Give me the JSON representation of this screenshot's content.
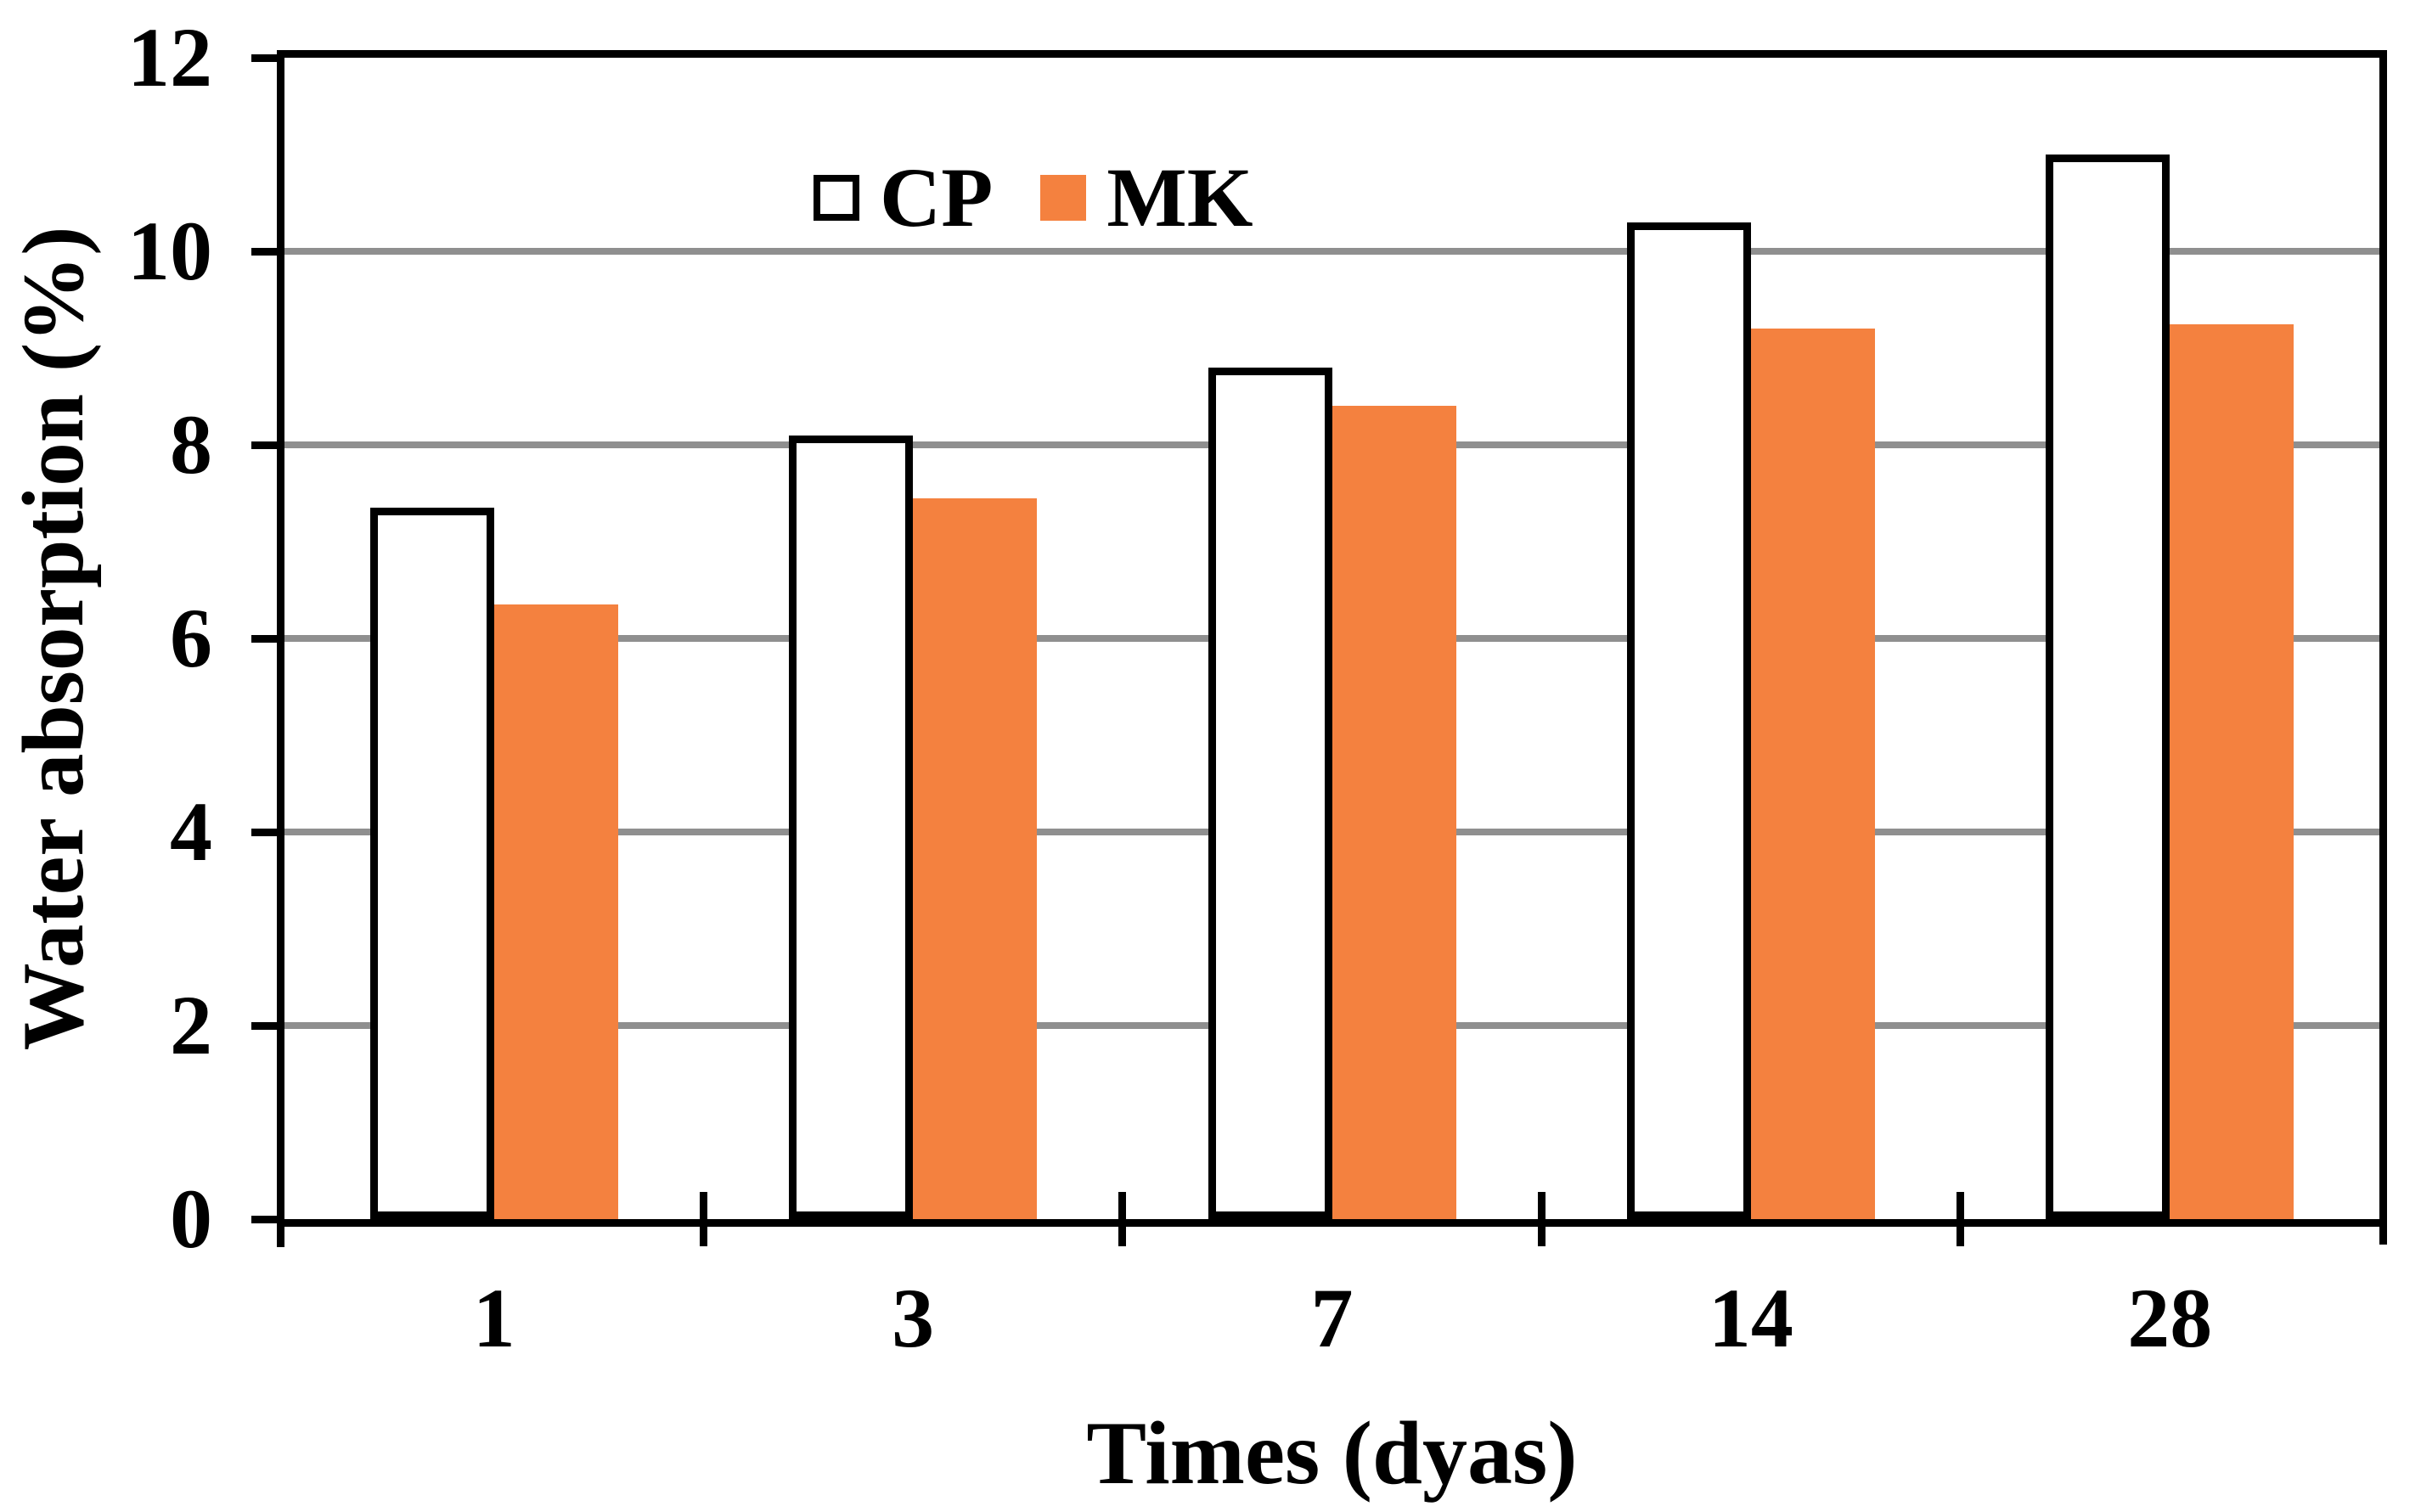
{
  "chart_data": {
    "type": "bar",
    "title": "",
    "categories": [
      "1",
      "3",
      "7",
      "14",
      "28"
    ],
    "series": [
      {
        "name": "CP",
        "fill": "#FFFFFF",
        "border_color": "#000000",
        "values": [
          7.35,
          8.1,
          8.8,
          10.3,
          11.0
        ]
      },
      {
        "name": "MK",
        "fill": "#F4813F",
        "border_color": "none",
        "values": [
          6.35,
          7.45,
          8.4,
          9.2,
          9.25
        ]
      }
    ],
    "xlabel": "Times (dyas)",
    "ylabel": "Water absorption (%)",
    "ylim": [
      0,
      12
    ],
    "ytick_step": 2,
    "ytick_labels": [
      "0",
      "2",
      "4",
      "6",
      "8",
      "10",
      "12"
    ],
    "grid": "horizontal-gray-lines-at-even-values",
    "legend_position": "top-center-inside-plot"
  },
  "colors": {
    "bar_orange": "#F4813F",
    "bar_white": "#FFFFFF",
    "bar_outline": "#000000",
    "gridline_gray": "#8F8F8F",
    "axis_black": "#000000",
    "background": "#FFFFFF"
  }
}
